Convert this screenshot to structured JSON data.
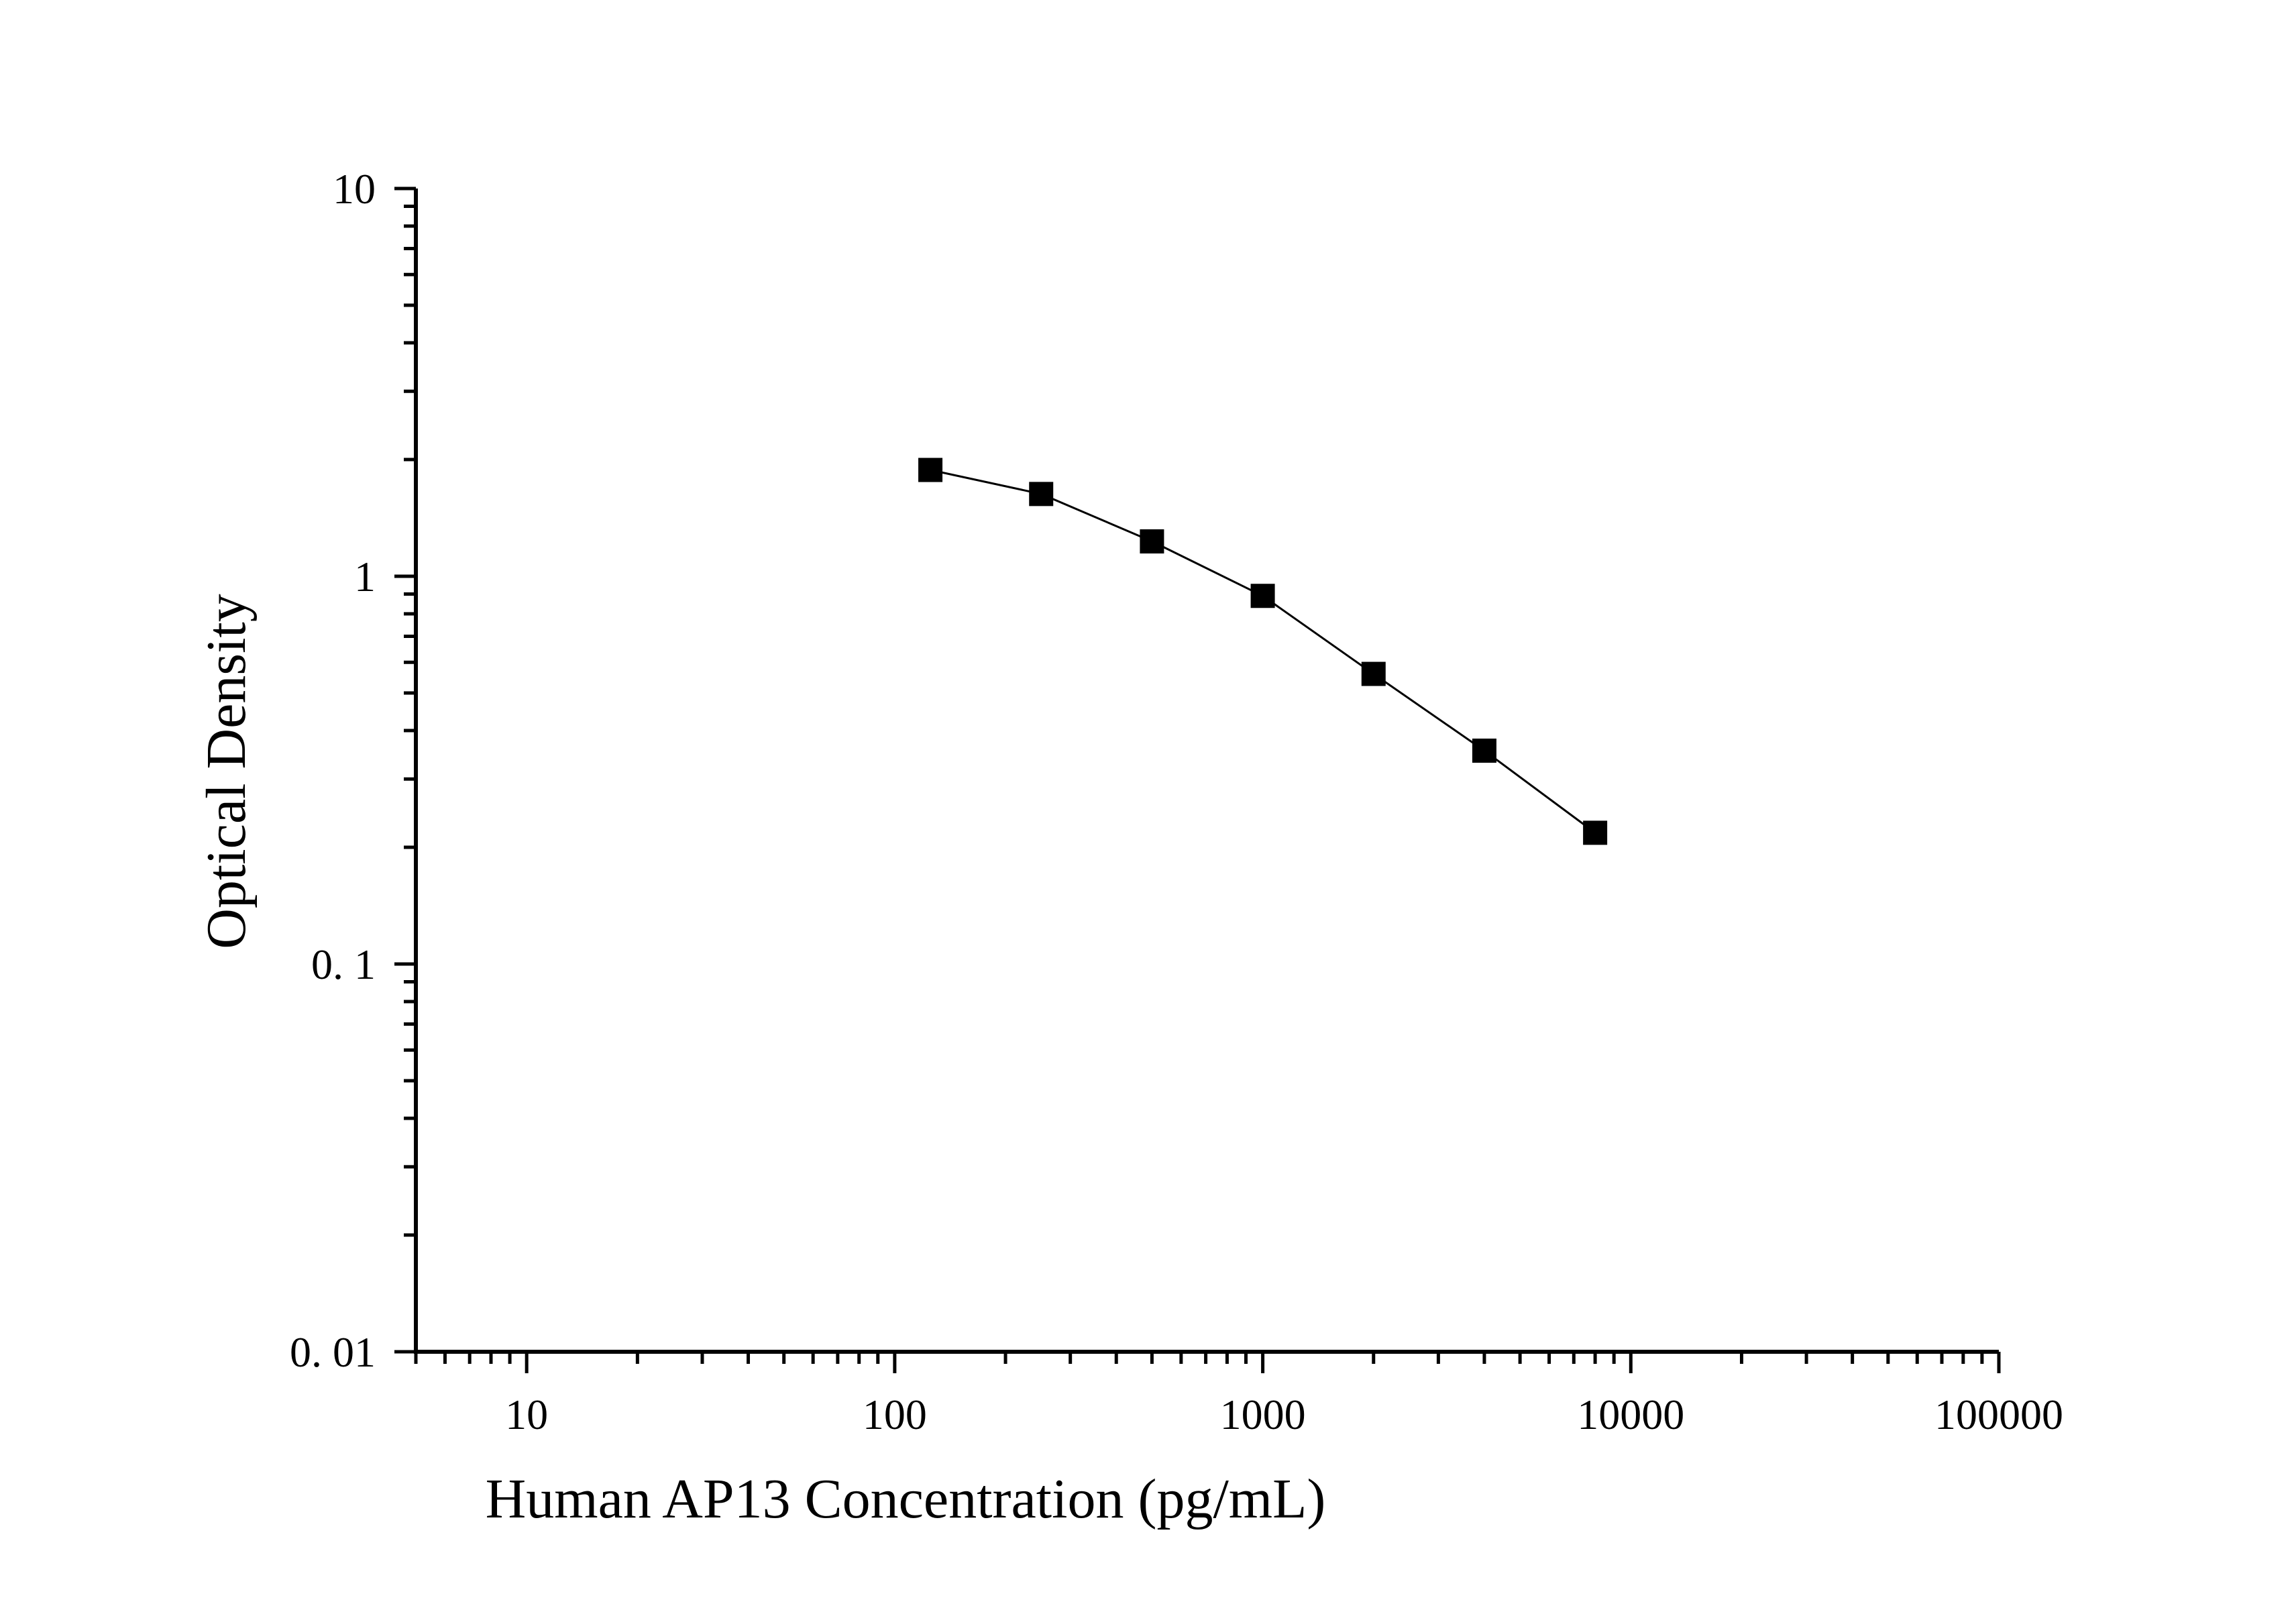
{
  "chart_data": {
    "type": "scatter",
    "title": "",
    "xlabel": "Human AP13 Concentration (pg/mL)",
    "ylabel": "Optical Density",
    "x_scale": "log",
    "y_scale": "log",
    "xlim": [
      5,
      100000
    ],
    "ylim": [
      0.01,
      10
    ],
    "x_tick_labels": [
      "10",
      "100",
      "1000",
      "10000",
      "100000"
    ],
    "x_tick_values": [
      10,
      100,
      1000,
      10000,
      100000
    ],
    "y_tick_labels": [
      "0. 01",
      "0. 1",
      "1",
      "10"
    ],
    "y_tick_values": [
      0.01,
      0.1,
      1,
      10
    ],
    "grid": false,
    "series": [
      {
        "marker": "square",
        "color": "#000000",
        "line": true,
        "x": [
          125,
          250,
          500,
          1000,
          2000,
          4000,
          8000
        ],
        "y": [
          1.88,
          1.63,
          1.23,
          0.89,
          0.56,
          0.355,
          0.218
        ]
      }
    ]
  }
}
